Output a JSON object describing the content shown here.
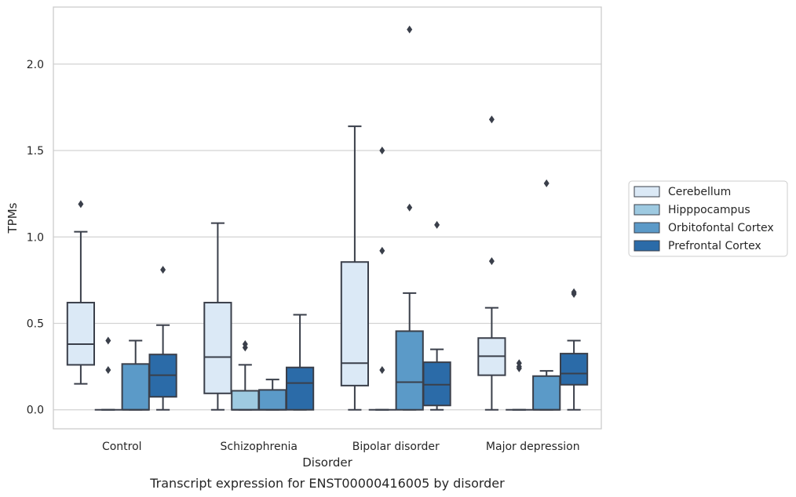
{
  "chart_data": {
    "type": "boxplot",
    "caption": "Transcript expression for ENST00000416005 by disorder",
    "xlabel": "Disorder",
    "ylabel": "TPMs",
    "ylim": [
      -0.11,
      2.33
    ],
    "yticks": [
      0.0,
      0.5,
      1.0,
      1.5,
      2.0
    ],
    "ytick_labels": [
      "0.0",
      "0.5",
      "1.0",
      "1.5",
      "2.0"
    ],
    "grid": "horizontal",
    "legend_position": "right",
    "categories": [
      "Control",
      "Schizophrenia",
      "Bipolar disorder",
      "Major depression"
    ],
    "series": [
      {
        "name": "Cerebellum",
        "color": "#dbe9f6",
        "boxes": [
          {
            "q1": 0.26,
            "median": 0.38,
            "q3": 0.62,
            "whislo": 0.15,
            "whishi": 1.03,
            "fliers": [
              1.19
            ]
          },
          {
            "q1": 0.095,
            "median": 0.305,
            "q3": 0.62,
            "whislo": 0.0,
            "whishi": 1.08,
            "fliers": []
          },
          {
            "q1": 0.14,
            "median": 0.27,
            "q3": 0.855,
            "whislo": 0.0,
            "whishi": 1.64,
            "fliers": []
          },
          {
            "q1": 0.2,
            "median": 0.31,
            "q3": 0.415,
            "whislo": 0.0,
            "whishi": 0.59,
            "fliers": [
              0.86,
              1.68
            ]
          }
        ]
      },
      {
        "name": "Hipppocampus",
        "color": "#9ecae1",
        "boxes": [
          {
            "q1": 0.0,
            "median": 0.0,
            "q3": 0.0,
            "whislo": 0.0,
            "whishi": 0.0,
            "fliers": [
              0.23,
              0.4
            ]
          },
          {
            "q1": 0.0,
            "median": 0.0,
            "q3": 0.11,
            "whislo": 0.0,
            "whishi": 0.26,
            "fliers": [
              0.36,
              0.38
            ]
          },
          {
            "q1": 0.0,
            "median": 0.0,
            "q3": 0.0,
            "whislo": 0.0,
            "whishi": 0.0,
            "fliers": [
              0.23,
              0.92,
              1.5
            ]
          },
          {
            "q1": 0.0,
            "median": 0.0,
            "q3": 0.0,
            "whislo": 0.0,
            "whishi": 0.0,
            "fliers": [
              0.24,
              0.25,
              0.27
            ]
          }
        ]
      },
      {
        "name": "Orbitofontal Cortex",
        "color": "#5b9ac8",
        "boxes": [
          {
            "q1": 0.0,
            "median": 0.0,
            "q3": 0.265,
            "whislo": 0.0,
            "whishi": 0.4,
            "fliers": []
          },
          {
            "q1": 0.0,
            "median": 0.0,
            "q3": 0.115,
            "whislo": 0.0,
            "whishi": 0.175,
            "fliers": []
          },
          {
            "q1": 0.0,
            "median": 0.16,
            "q3": 0.455,
            "whislo": 0.0,
            "whishi": 0.675,
            "fliers": [
              1.17,
              2.2
            ]
          },
          {
            "q1": 0.0,
            "median": 0.0,
            "q3": 0.195,
            "whislo": 0.0,
            "whishi": 0.225,
            "fliers": [
              1.31
            ]
          }
        ]
      },
      {
        "name": "Prefrontal Cortex",
        "color": "#2b6ba8",
        "boxes": [
          {
            "q1": 0.075,
            "median": 0.2,
            "q3": 0.32,
            "whislo": 0.0,
            "whishi": 0.49,
            "fliers": [
              0.81
            ]
          },
          {
            "q1": 0.0,
            "median": 0.155,
            "q3": 0.245,
            "whislo": 0.0,
            "whishi": 0.55,
            "fliers": []
          },
          {
            "q1": 0.025,
            "median": 0.145,
            "q3": 0.275,
            "whislo": 0.0,
            "whishi": 0.35,
            "fliers": [
              1.07
            ]
          },
          {
            "q1": 0.145,
            "median": 0.21,
            "q3": 0.325,
            "whislo": 0.0,
            "whishi": 0.4,
            "fliers": [
              0.67,
              0.68
            ]
          }
        ]
      }
    ]
  }
}
